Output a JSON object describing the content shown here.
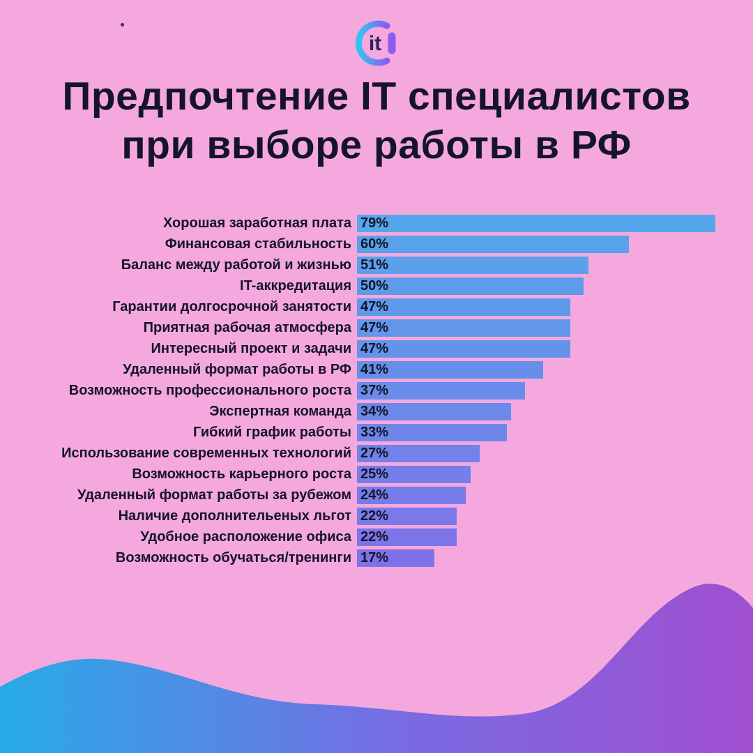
{
  "logo": {
    "text": "it"
  },
  "title": {
    "line1": "Предпочтение IT специалистов",
    "line2": "при выборе работы в РФ"
  },
  "chart_data": {
    "type": "bar",
    "orientation": "horizontal",
    "title": "Предпочтение IT специалистов при выборе работы в РФ",
    "categories": [
      "Хорошая заработная плата",
      "Финансовая стабильность",
      "Баланс между работой и жизнью",
      "IT-аккредитация",
      "Гарантии долгосрочной занятости",
      "Приятная рабочая атмосфера",
      "Интересный проект и задачи",
      "Удаленный формат работы в РФ",
      "Возможность профессионального роста",
      "Экспертная команда",
      "Гибкий график работы",
      "Использование современных технологий",
      "Возможность карьерного роста",
      "Удаленный формат работы за рубежом",
      "Наличие дополнительеных льгот",
      "Удобное расположение офиса",
      "Возможность обучаться/тренинги"
    ],
    "values": [
      79,
      60,
      51,
      50,
      47,
      47,
      47,
      41,
      37,
      34,
      33,
      27,
      25,
      24,
      22,
      22,
      17
    ],
    "value_suffix": "%",
    "xlim": [
      0,
      100
    ],
    "legend": "none",
    "grid": false
  },
  "colors": {
    "background": "#f4a8dd",
    "bar_color_start": "#55a6ea",
    "bar_color_end": "#7e72e9",
    "text": "#15142a",
    "wave_left": "#28abe8",
    "wave_mid": "#7a6ae2",
    "wave_right": "#a04fd0",
    "logo_gradient_start": "#31c5f0",
    "logo_gradient_end": "#8a5cf0"
  }
}
